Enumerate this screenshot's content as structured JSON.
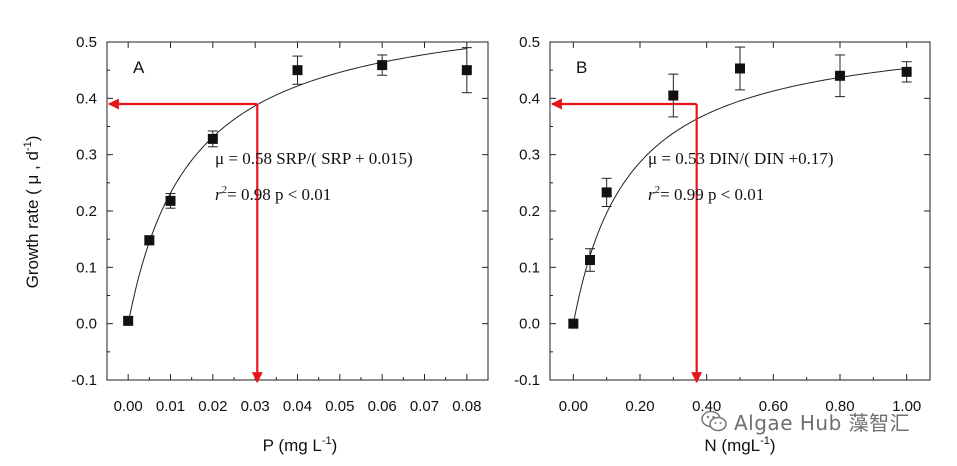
{
  "y_axis_title": "Growth rate ( μ , d",
  "y_axis_title_sup": "-1",
  "y_axis_title_end": ")",
  "watermark": "Algae Hub 藻智汇",
  "chart_data": [
    {
      "type": "scatter",
      "panel_label": "A",
      "xlabel": "P (mg L",
      "xlabel_sup": "-1",
      "xlabel_end": ")",
      "ylabel": "Growth rate ( μ , d-1)",
      "xlim": [
        -0.005,
        0.085
      ],
      "ylim": [
        -0.1,
        0.5
      ],
      "x_ticks": [
        0.0,
        0.01,
        0.02,
        0.03,
        0.04,
        0.05,
        0.06,
        0.07,
        0.08
      ],
      "x_tick_labels": [
        "0.00",
        "0.01",
        "0.02",
        "0.03",
        "0.04",
        "0.05",
        "0.06",
        "0.07",
        "0.08"
      ],
      "y_ticks": [
        -0.1,
        0.0,
        0.1,
        0.2,
        0.3,
        0.4,
        0.5
      ],
      "y_tick_labels": [
        "-0.1",
        "0.0",
        "0.1",
        "0.2",
        "0.3",
        "0.4",
        "0.5"
      ],
      "points": [
        {
          "x": 0.0,
          "y": 0.005,
          "err": 0.006
        },
        {
          "x": 0.005,
          "y": 0.148,
          "err": 0.008
        },
        {
          "x": 0.01,
          "y": 0.218,
          "err": 0.013
        },
        {
          "x": 0.02,
          "y": 0.328,
          "err": 0.014
        },
        {
          "x": 0.04,
          "y": 0.45,
          "err": 0.025
        },
        {
          "x": 0.06,
          "y": 0.459,
          "err": 0.018
        },
        {
          "x": 0.08,
          "y": 0.45,
          "err": 0.04
        }
      ],
      "fit": {
        "vmax": 0.58,
        "k": 0.015,
        "x_from": 0.0,
        "x_to": 0.08
      },
      "equation": "μ = 0.58 SRP/( SRP + 0.015)",
      "stats_r": "r",
      "stats_rest": "= 0.98   p < 0.01",
      "marker": {
        "x": 0.0305,
        "y": 0.39
      },
      "arrow_color": "#e8141b"
    },
    {
      "type": "scatter",
      "panel_label": "B",
      "xlabel": "N (mgL",
      "xlabel_sup": "-1",
      "xlabel_end": ")",
      "ylabel": "Growth rate ( μ , d-1)",
      "xlim": [
        -0.07,
        1.07
      ],
      "ylim": [
        -0.1,
        0.5
      ],
      "x_ticks": [
        0.0,
        0.2,
        0.4,
        0.6,
        0.8,
        1.0
      ],
      "x_tick_labels": [
        "0.00",
        "0.20",
        "0.40",
        "0.60",
        "0.80",
        "1.00"
      ],
      "y_ticks": [
        -0.1,
        0.0,
        0.1,
        0.2,
        0.3,
        0.4,
        0.5
      ],
      "y_tick_labels": [
        "-0.1",
        "0.0",
        "0.1",
        "0.2",
        "0.3",
        "0.4",
        "0.5"
      ],
      "points": [
        {
          "x": 0.0,
          "y": 0.0,
          "err": 0.006
        },
        {
          "x": 0.05,
          "y": 0.113,
          "err": 0.02
        },
        {
          "x": 0.1,
          "y": 0.233,
          "err": 0.025
        },
        {
          "x": 0.3,
          "y": 0.405,
          "err": 0.038
        },
        {
          "x": 0.5,
          "y": 0.453,
          "err": 0.038
        },
        {
          "x": 0.8,
          "y": 0.44,
          "err": 0.037
        },
        {
          "x": 1.0,
          "y": 0.447,
          "err": 0.018
        }
      ],
      "fit": {
        "vmax": 0.53,
        "k": 0.17,
        "x_from": 0.0,
        "x_to": 1.0
      },
      "equation": "μ = 0.53 DIN/( DIN +0.17)",
      "stats_r": "r",
      "stats_rest": "= 0.99   p < 0.01",
      "marker": {
        "x": 0.37,
        "y": 0.39
      },
      "arrow_color": "#e8141b"
    }
  ]
}
